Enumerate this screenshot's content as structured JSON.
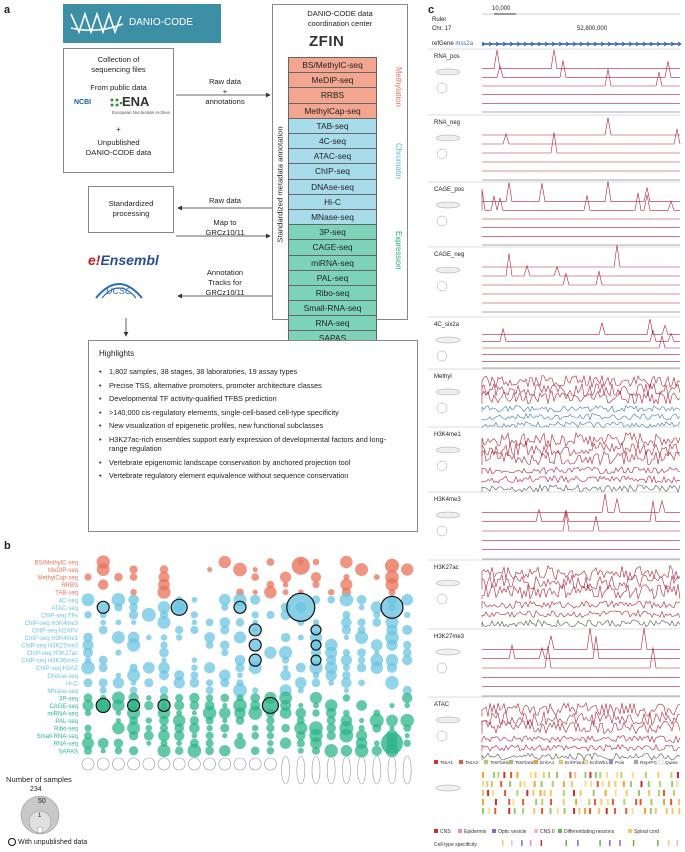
{
  "panels": {
    "a": "a",
    "b": "b",
    "c": "c"
  },
  "logo": {
    "text": "DANIO-CODE"
  },
  "collection": {
    "title_line1": "Collection of",
    "title_line2": "sequencing files",
    "public": "From public data",
    "ncbi": "NCBI",
    "ena": "ENA",
    "ena_sub": "European Nucleotide Archive",
    "plus": "+",
    "unpub_line1": "Unpublished",
    "unpub_line2": "DANIO-CODE data"
  },
  "processing": {
    "line1": "Standardized",
    "line2": "processing"
  },
  "arrows": {
    "raw_data_line1": "Raw data",
    "raw_data_line2": "+",
    "raw_data_line3": "annotations",
    "raw_data2": "Raw data",
    "map_line1": "Map to",
    "map_line2": "GRCz10/11",
    "annot_line1": "Annotation",
    "annot_line2": "Tracks for",
    "annot_line3": "GRCz10/11"
  },
  "dcc": {
    "title_line1": "DANIO-CODE data",
    "title_line2": "coordination center",
    "zfin": "ZFIN",
    "side": "Standardized metadata annotation"
  },
  "assays": {
    "methylation": [
      "BS/MethylC-seq",
      "MeDIP-seq",
      "RRBS",
      "MethylCap-seq"
    ],
    "chromatin": [
      "TAB-seq",
      "4C-seq",
      "ATAC-seq",
      "ChIP-seq",
      "DNAse-seq",
      "Hi-C",
      "MNase-seq"
    ],
    "expression": [
      "3P-seq",
      "CAGE-seq",
      "miRNA-seq",
      "PAL-seq",
      "Ribo-seq",
      "Small-RNA-seq",
      "RNA-seq",
      "SAPAS"
    ]
  },
  "group_labels": {
    "methylation": "Methylation",
    "chromatin": "Chromatin",
    "expression": "Expression"
  },
  "ensembl": {
    "e": "e!",
    "name": "Ensembl",
    "ucsc": "UCSC"
  },
  "highlights": {
    "title": "Highlights",
    "items": [
      "1,802 samples, 38 stages, 38 laboratories, 19 assay types",
      "Precise TSS, alternative promoters, promoter architecture classes",
      "Developmental TF activity-qualified TFBS prediction",
      ">140,000 cis-regulatory elements, single-cell-based cell-type specificity",
      "New visualization of epigenetic profiles, new functional subclasses",
      "H3K27ac-rich ensembles support early expression of developmental factors and long-range regulation",
      "Vertebrate epigenomic landscape conservation by anchored projection tool",
      "Vertebrate regulatory element equivalence without sequence conservation"
    ]
  },
  "bubble": {
    "rows": [
      {
        "label": "BS/MethylC-seq",
        "group": "m"
      },
      {
        "label": "MeDIP-seq",
        "group": "m"
      },
      {
        "label": "MethylCap-seq",
        "group": "m"
      },
      {
        "label": "RRBS",
        "group": "m"
      },
      {
        "label": "TAB-seq",
        "group": "m"
      },
      {
        "label": "4C-seq",
        "group": "c"
      },
      {
        "label": "ATAC-seq",
        "group": "c"
      },
      {
        "label": "ChIP-seq TFs",
        "group": "c"
      },
      {
        "label": "ChIP-seq H3K4me3",
        "group": "c"
      },
      {
        "label": "ChIP-seq H2AFV",
        "group": "c"
      },
      {
        "label": "ChIP-seq H3K4me1",
        "group": "c"
      },
      {
        "label": "ChIP-seq H3K27me3",
        "group": "c"
      },
      {
        "label": "ChIP-seq H3K27ac",
        "group": "c"
      },
      {
        "label": "ChIP-seq H3K36me3",
        "group": "c"
      },
      {
        "label": "ChIP-seq H2AZ",
        "group": "c"
      },
      {
        "label": "DNAse-seq",
        "group": "c"
      },
      {
        "label": "Hi-C",
        "group": "c"
      },
      {
        "label": "MNase-seq",
        "group": "c"
      },
      {
        "label": "3P-seq",
        "group": "e"
      },
      {
        "label": "CAGE-seq",
        "group": "e"
      },
      {
        "label": "miRNA-seq",
        "group": "e"
      },
      {
        "label": "PAL-seq",
        "group": "e"
      },
      {
        "label": "Ribo-seq",
        "group": "e"
      },
      {
        "label": "Small-RNA-seq",
        "group": "e"
      },
      {
        "label": "RNA-seq",
        "group": "e"
      },
      {
        "label": "SAPAS",
        "group": "e"
      }
    ],
    "legend_title": "Number of samples",
    "legend_max": "234",
    "legend_mid": "50",
    "legend_min": "1",
    "legend_unpub": "With unpublished data"
  },
  "tracks": {
    "ruler": "Ruler",
    "chr": "Chr. 17",
    "scale": "10,000",
    "coord": "52,800,000",
    "refgene": "refGene",
    "gene": "mss2a",
    "labels": [
      "RNA_pos",
      "RNA_neg",
      "CAGE_pos",
      "CAGE_neg",
      "4C_six2a",
      "Methyl",
      "H3K4me1",
      "H3K4me3",
      "H3K27ac",
      "H3K27me3",
      "ATAC"
    ],
    "chromhmm": [
      "TssA1",
      "TssA2",
      "TssFlank1",
      "TssFlank2",
      "EnhA1",
      "EnhFlank",
      "EnhWk1",
      "Pois",
      "ReprPC",
      "Quies"
    ],
    "celltypes": [
      "CNS",
      "Epidermis",
      "Optic vesicle",
      "CNS II",
      "Differentiating neurons",
      "Spinal cord"
    ],
    "celltype_label": "Cell-type specificity"
  },
  "colors": {
    "methyl": "#e8735a",
    "chromatin": "#6cc4e0",
    "expression": "#2db58a",
    "track_red": "#b0243a",
    "track_blue": "#3a7aa8",
    "dcc_border": "#555"
  }
}
